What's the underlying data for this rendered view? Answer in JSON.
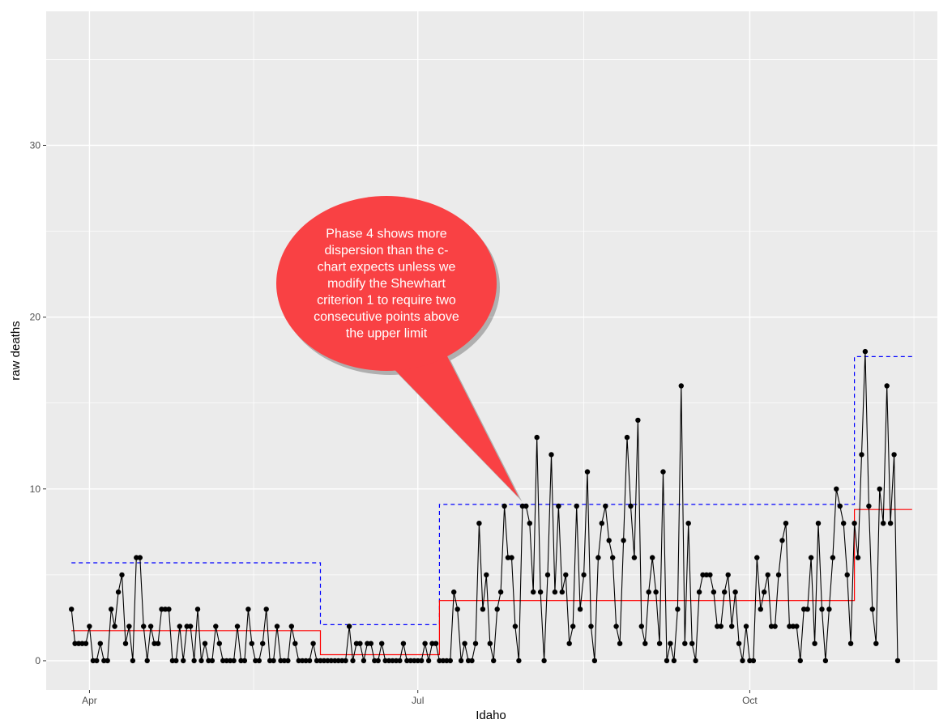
{
  "chart_data": {
    "type": "line",
    "xlabel": "Idaho",
    "ylabel": "raw deaths",
    "x_axis": "date",
    "x_range": [
      "2020-03-20",
      "2020-11-22"
    ],
    "ylim": [
      -1.7,
      37.8
    ],
    "x_ticks": [
      {
        "date": "2020-04-01",
        "label": "Apr"
      },
      {
        "date": "2020-07-01",
        "label": "Jul"
      },
      {
        "date": "2020-10-01",
        "label": "Oct"
      }
    ],
    "y_ticks": [
      0,
      10,
      20,
      30
    ],
    "grid": true,
    "series": [
      {
        "role": "observed",
        "color": "#000000",
        "style": "line+points",
        "start_date": "2020-03-27",
        "values": [
          3,
          1,
          1,
          1,
          1,
          2,
          0,
          0,
          1,
          0,
          0,
          3,
          2,
          4,
          5,
          1,
          2,
          0,
          6,
          6,
          2,
          0,
          2,
          1,
          1,
          3,
          3,
          3,
          0,
          0,
          2,
          0,
          2,
          2,
          0,
          3,
          0,
          1,
          0,
          0,
          2,
          1,
          0,
          0,
          0,
          0,
          2,
          0,
          0,
          3,
          1,
          0,
          0,
          1,
          3,
          0,
          0,
          2,
          0,
          0,
          0,
          2,
          1,
          0,
          0,
          0,
          0,
          1,
          0,
          0,
          0,
          0,
          0,
          0,
          0,
          0,
          0,
          2,
          0,
          1,
          1,
          0,
          1,
          1,
          0,
          0,
          1,
          0,
          0,
          0,
          0,
          0,
          1,
          0,
          0,
          0,
          0,
          0,
          1,
          0,
          1,
          1,
          0,
          0,
          0,
          0,
          4,
          3,
          0,
          1,
          0,
          0,
          1,
          8,
          3,
          5,
          1,
          0,
          3,
          4,
          9,
          6,
          6,
          2,
          0,
          9,
          9,
          8,
          4,
          13,
          4,
          0,
          5,
          12,
          4,
          9,
          4,
          5,
          1,
          2,
          9,
          3,
          5,
          11,
          2,
          0,
          6,
          8,
          9,
          7,
          6,
          2,
          1,
          7,
          13,
          9,
          6,
          14,
          2,
          1,
          4,
          6,
          4,
          1,
          11,
          0,
          1,
          0,
          3,
          16,
          1,
          8,
          1,
          0,
          4,
          5,
          5,
          5,
          4,
          2,
          2,
          4,
          5,
          2,
          4,
          1,
          0,
          2,
          0,
          0,
          6,
          3,
          4,
          5,
          2,
          2,
          5,
          7,
          8,
          2,
          2,
          2,
          0,
          3,
          3,
          6,
          1,
          8,
          3,
          0,
          3,
          6,
          10,
          9,
          8,
          5,
          1,
          8,
          6,
          12,
          18,
          9,
          3,
          1,
          10,
          8,
          16,
          8,
          12,
          0
        ]
      }
    ],
    "center_line": {
      "color": "#ff0000",
      "style": "solid",
      "steps": [
        {
          "from": "2020-03-27",
          "to": "2020-06-04",
          "value": 1.75
        },
        {
          "from": "2020-06-04",
          "to": "2020-07-07",
          "value": 0.35
        },
        {
          "from": "2020-07-07",
          "to": "2020-10-30",
          "value": 3.5
        },
        {
          "from": "2020-10-30",
          "to": "2020-11-15",
          "value": 8.8
        }
      ]
    },
    "upper_limit": {
      "color": "#0000ff",
      "style": "dashed",
      "steps": [
        {
          "from": "2020-03-27",
          "to": "2020-06-04",
          "value": 5.7
        },
        {
          "from": "2020-06-04",
          "to": "2020-07-07",
          "value": 2.1
        },
        {
          "from": "2020-07-07",
          "to": "2020-10-30",
          "value": 9.1
        },
        {
          "from": "2020-10-30",
          "to": "2020-11-15",
          "value": 17.7
        }
      ]
    },
    "annotation": {
      "text_lines": [
        "Phase 4 shows more",
        "dispersion than the c-",
        "chart expects unless we",
        "modify the Shewhart",
        "criterion 1 to require two",
        "consecutive points above",
        "the upper limit"
      ],
      "color": "#f94144",
      "text_color": "#ffffff",
      "shape": "speech-bubble",
      "points_to": {
        "date": "2020-07-29",
        "value": 9.5
      }
    },
    "panel_background": "#ebebeb",
    "grid_color": "#ffffff"
  }
}
